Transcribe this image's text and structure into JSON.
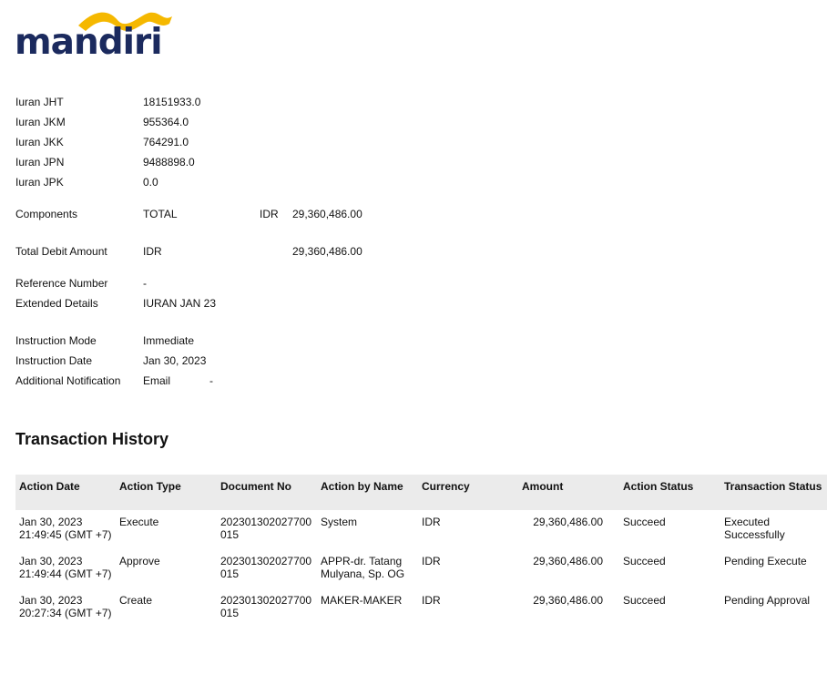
{
  "logo": {
    "text": "mandiri",
    "colors": {
      "text": "#1b2a5e",
      "wave": "#f5b800"
    }
  },
  "fields": [
    {
      "label": "Iuran JHT",
      "value": "18151933.0"
    },
    {
      "label": "Iuran JKM",
      "value": "955364.0"
    },
    {
      "label": "Iuran JKK",
      "value": "764291.0"
    },
    {
      "label": "Iuran JPN",
      "value": "9488898.0"
    },
    {
      "label": "Iuran JPK",
      "value": "0.0"
    }
  ],
  "components": {
    "label": "Components",
    "value": "TOTAL",
    "currency": "IDR",
    "amount": "29,360,486.00"
  },
  "total_debit": {
    "label": "Total Debit Amount",
    "currency": "IDR",
    "amount": "29,360,486.00"
  },
  "reference": {
    "label": "Reference Number",
    "value": "-"
  },
  "extended": {
    "label": "Extended Details",
    "value": "IURAN JAN 23"
  },
  "instruction_mode": {
    "label": "Instruction Mode",
    "value": "Immediate"
  },
  "instruction_date": {
    "label": "Instruction Date",
    "value": "Jan 30, 2023"
  },
  "notification": {
    "label": "Additional Notification",
    "value": "Email",
    "extra": "-"
  },
  "history": {
    "title": "Transaction History",
    "headers": [
      "Action Date",
      "Action Type",
      "Document No",
      "Action by Name",
      "Currency",
      "Amount",
      "Action Status",
      "Transaction Status"
    ],
    "rows": [
      [
        "Jan 30, 2023 21:49:45 (GMT +7)",
        "Execute",
        "202301302027700015",
        "System",
        "IDR",
        "29,360,486.00",
        "Succeed",
        "Executed Successfully"
      ],
      [
        "Jan 30, 2023 21:49:44 (GMT +7)",
        "Approve",
        "202301302027700015",
        "APPR-dr. Tatang Mulyana, Sp. OG",
        "IDR",
        "29,360,486.00",
        "Succeed",
        "Pending Execute"
      ],
      [
        "Jan 30, 2023 20:27:34 (GMT +7)",
        "Create",
        "202301302027700015",
        "MAKER-MAKER",
        "IDR",
        "29,360,486.00",
        "Succeed",
        "Pending Approval"
      ]
    ]
  }
}
